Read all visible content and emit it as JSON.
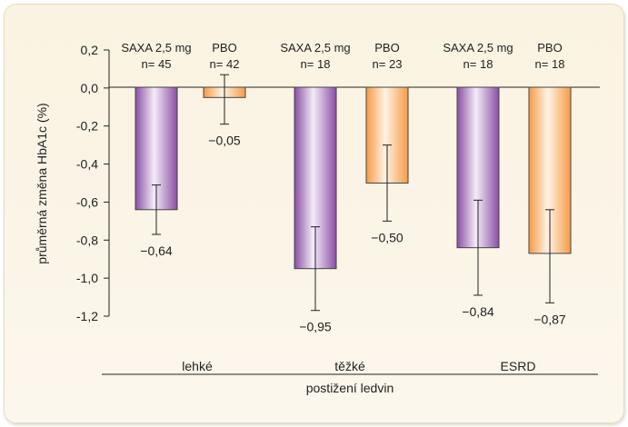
{
  "chart_data": {
    "type": "bar",
    "ylabel": "průměrná změna HbA1c (%)",
    "ylim": [
      -1.2,
      0.2
    ],
    "yticks": [
      "0,2",
      "0,0",
      "-0,2",
      "-0,4",
      "-0,6",
      "-0,8",
      "-1,0",
      "-1,2"
    ],
    "ytick_values": [
      0.2,
      0.0,
      -0.2,
      -0.4,
      -0.6,
      -0.8,
      -1.0,
      -1.2
    ],
    "groups": [
      "lehké",
      "těžké",
      "ESRD"
    ],
    "group_axis_label": "postižení ledvin",
    "bars": [
      {
        "group": "lehké",
        "treatment": "SAXA 2,5 mg",
        "n": "n= 45",
        "value": -0.64,
        "label": "-0,64",
        "error_low": -0.77,
        "error_high": -0.51
      },
      {
        "group": "lehké",
        "treatment": "PBO",
        "n": "n= 42",
        "value": -0.05,
        "label": "-0,05",
        "error_low": -0.19,
        "error_high": 0.07
      },
      {
        "group": "těžké",
        "treatment": "SAXA 2,5 mg",
        "n": "n= 18",
        "value": -0.95,
        "label": "-0,95",
        "error_low": -1.17,
        "error_high": -0.73
      },
      {
        "group": "těžké",
        "treatment": "PBO",
        "n": "n= 23",
        "value": -0.5,
        "label": "-0,50",
        "error_low": -0.7,
        "error_high": -0.3
      },
      {
        "group": "ESRD",
        "treatment": "SAXA 2,5 mg",
        "n": "n= 18",
        "value": -0.84,
        "label": "-0,84",
        "error_low": -1.09,
        "error_high": -0.59
      },
      {
        "group": "ESRD",
        "treatment": "PBO",
        "n": "n= 18",
        "value": -0.87,
        "label": "-0,87",
        "error_low": -1.13,
        "error_high": -0.64
      }
    ],
    "colors": {
      "SAXA 2,5 mg": "#9a5fb0",
      "PBO": "#f5a24e"
    },
    "grid": false,
    "legend": "none"
  }
}
